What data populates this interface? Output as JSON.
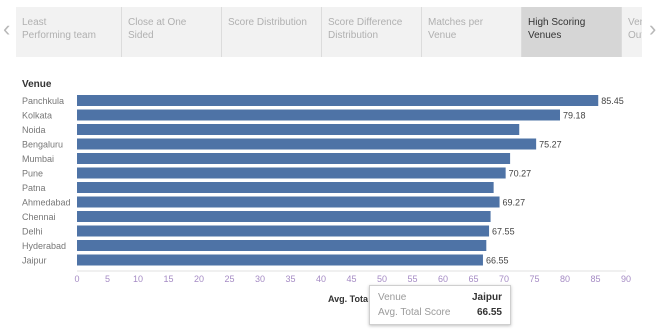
{
  "tabs": [
    {
      "label": "Least\nPerforming team",
      "active": false
    },
    {
      "label": "Close at One\nSided",
      "active": false
    },
    {
      "label": "Score Distribution",
      "active": false
    },
    {
      "label": "Score Difference\nDistribution",
      "active": false
    },
    {
      "label": "Matches per\nVenue",
      "active": false
    },
    {
      "label": "High Scoring\nVenues",
      "active": true
    },
    {
      "label": "Venue\nOutco",
      "active": false
    }
  ],
  "nav": {
    "prev_icon": "chevron-left-icon",
    "next_icon": "chevron-right-icon"
  },
  "chart_data": {
    "type": "bar",
    "orientation": "horizontal",
    "row_header": "Venue",
    "categories": [
      "Panchkula",
      "Kolkata",
      "Noida",
      "Bengaluru",
      "Mumbai",
      "Pune",
      "Patna",
      "Ahmedabad",
      "Chennai",
      "Delhi",
      "Hyderabad",
      "Jaipur"
    ],
    "values": [
      85.45,
      79.18,
      72.5,
      75.27,
      71.0,
      70.27,
      68.3,
      69.27,
      67.8,
      67.55,
      67.1,
      66.55
    ],
    "data_labels": [
      "85.45",
      "79.18",
      "",
      "75.27",
      "",
      "70.27",
      "",
      "69.27",
      "",
      "67.55",
      "",
      "66.55"
    ],
    "xlabel": "Avg. Tota",
    "xlim": [
      0,
      90
    ],
    "ticks": [
      "0",
      "5",
      "10",
      "15",
      "20",
      "25",
      "30",
      "35",
      "40",
      "45",
      "50",
      "55",
      "60",
      "65",
      "70",
      "75",
      "80",
      "85",
      "90"
    ],
    "bar_color": "#4e73a6",
    "grid": false
  },
  "tooltip": {
    "key1": "Venue",
    "val1": "Jaipur",
    "key2": "Avg. Total Score",
    "val2": "66.55"
  }
}
